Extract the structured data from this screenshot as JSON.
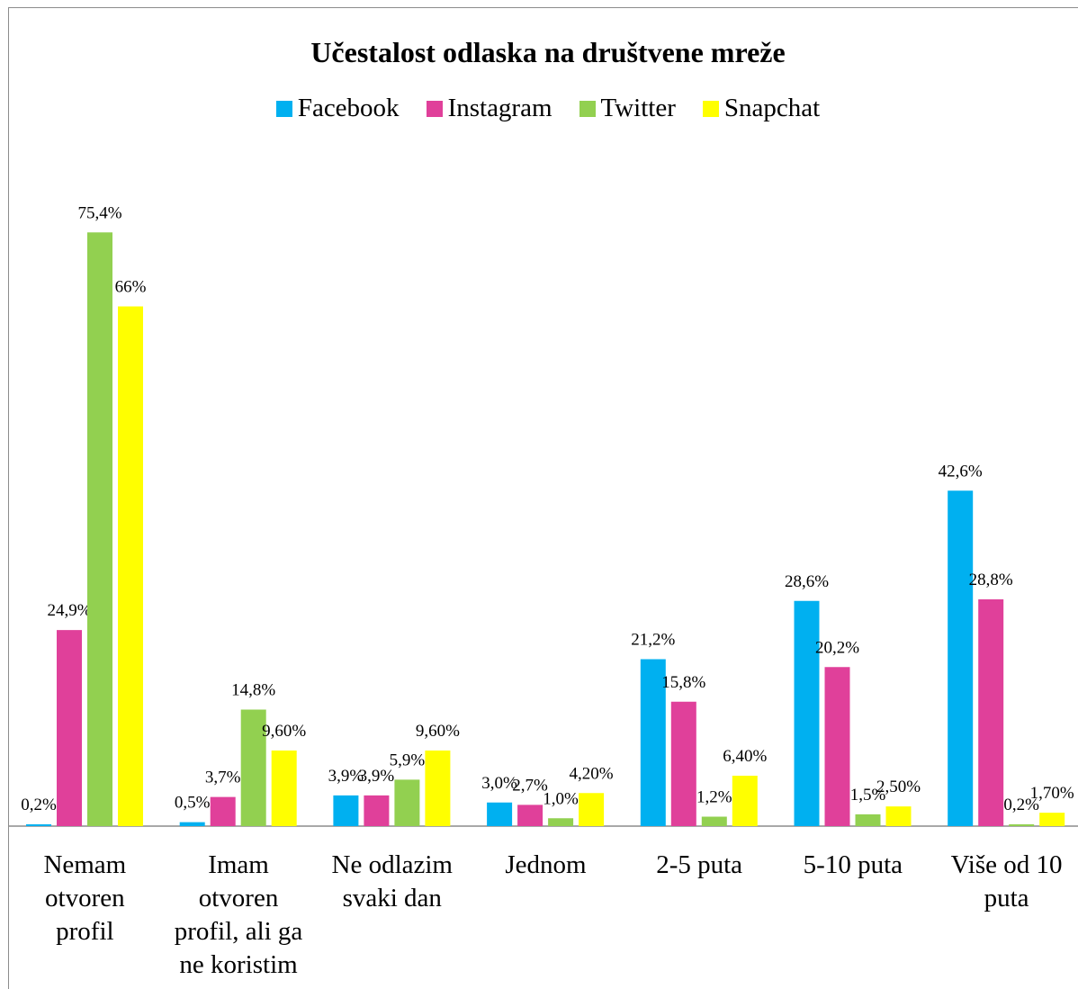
{
  "chart_data": {
    "type": "bar",
    "title": "Učestalost odlaska na društvene mreže",
    "xlabel": "",
    "ylabel": "",
    "ylim": [
      0,
      80
    ],
    "legend_position": "top",
    "grid": false,
    "categories": [
      [
        "Nemam",
        "otvoren",
        "profil"
      ],
      [
        "Imam",
        "otvoren",
        "profil, ali ga",
        "ne koristim"
      ],
      [
        "Ne odlazim",
        "svaki dan"
      ],
      [
        "Jednom"
      ],
      [
        "2-5 puta"
      ],
      [
        "5-10 puta"
      ],
      [
        "Više od 10",
        "puta"
      ]
    ],
    "series": [
      {
        "name": "Facebook",
        "color": "#00b0f0",
        "values": [
          0.2,
          0.5,
          3.9,
          3.0,
          21.2,
          28.6,
          42.6
        ],
        "labels": [
          "0,2%",
          "0,5%",
          "3,9%",
          "3,0%",
          "21,2%",
          "28,6%",
          "42,6%"
        ]
      },
      {
        "name": "Instagram",
        "color": "#e0409a",
        "values": [
          24.9,
          3.7,
          3.9,
          2.7,
          15.8,
          20.2,
          28.8
        ],
        "labels": [
          "24,9%",
          "3,7%",
          "3,9%",
          "2,7%",
          "15,8%",
          "20,2%",
          "28,8%"
        ]
      },
      {
        "name": "Twitter",
        "color": "#92d050",
        "values": [
          75.4,
          14.8,
          5.9,
          1.0,
          1.2,
          1.5,
          0.2
        ],
        "labels": [
          "75,4%",
          "14,8%",
          "5,9%",
          "1,0%",
          "1,2%",
          "1,5%",
          "0,2%"
        ]
      },
      {
        "name": "Snapchat",
        "color": "#ffff00",
        "values": [
          66,
          9.6,
          9.6,
          4.2,
          6.4,
          2.5,
          1.7
        ],
        "labels": [
          "66%",
          "9,60%",
          "9,60%",
          "4,20%",
          "6,40%",
          "2,50%",
          "1,70%"
        ]
      }
    ]
  }
}
